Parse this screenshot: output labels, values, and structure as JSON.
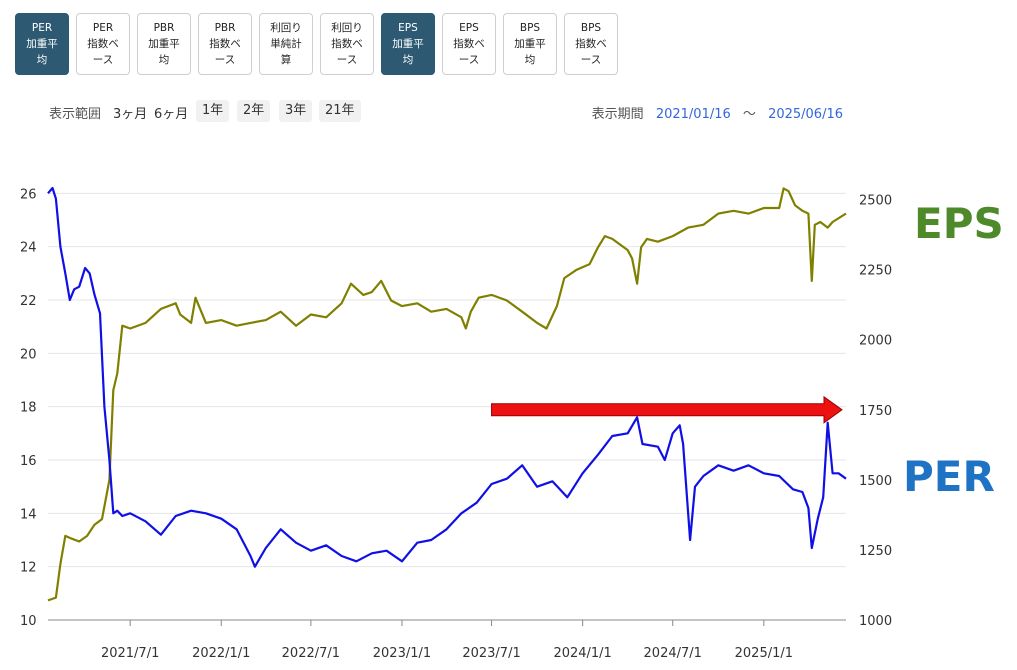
{
  "tabs": [
    {
      "label": "PER\n加重平\n均",
      "active": true
    },
    {
      "label": "PER\n指数ベ\nース",
      "active": false
    },
    {
      "label": "PBR\n加重平\n均",
      "active": false
    },
    {
      "label": "PBR\n指数ベ\nース",
      "active": false
    },
    {
      "label": "利回り\n単純計\n算",
      "active": false
    },
    {
      "label": "利回り\n指数ベ\nース",
      "active": false
    },
    {
      "label": "EPS\n加重平\n均",
      "active": true
    },
    {
      "label": "EPS\n指数ベ\nース",
      "active": false
    },
    {
      "label": "BPS\n加重平\n均",
      "active": false
    },
    {
      "label": "BPS\n指数ベ\nース",
      "active": false
    }
  ],
  "range": {
    "label": "表示範囲",
    "options": [
      "3ヶ月",
      "6ヶ月"
    ],
    "buttons": [
      "1年",
      "2年",
      "3年",
      "21年"
    ]
  },
  "period": {
    "label": "表示期間",
    "start": "2021/01/16",
    "sep": "〜",
    "end": "2025/06/16"
  },
  "colors": {
    "per_line": "#1010e6",
    "eps_line": "#808000",
    "per_label": "#1f73c4",
    "eps_label": "#4f8a2a",
    "arrow": "#ee1111",
    "active_tab": "#2d5a72"
  },
  "chart_data": {
    "type": "line",
    "x_ticks": [
      "2021/7/1",
      "2022/1/1",
      "2022/7/1",
      "2023/1/1",
      "2023/7/1",
      "2024/1/1",
      "2024/7/1",
      "2025/1/1"
    ],
    "y_left_ticks": [
      "10",
      "12",
      "14",
      "16",
      "18",
      "20",
      "22",
      "24",
      "26"
    ],
    "y_right_ticks": [
      "1000",
      "1250",
      "1500",
      "1750",
      "2000",
      "2250",
      "2500"
    ],
    "y_left_range": [
      10,
      26.5
    ],
    "y_right_range": [
      1000,
      2570
    ],
    "x_range": [
      "2021-01-16",
      "2025-06-16"
    ],
    "series": [
      {
        "name": "EPS",
        "axis": "right",
        "points": [
          [
            "2021-01-16",
            1070
          ],
          [
            "2021-02-01",
            1080
          ],
          [
            "2021-02-10",
            1200
          ],
          [
            "2021-02-20",
            1300
          ],
          [
            "2021-03-05",
            1290
          ],
          [
            "2021-03-20",
            1280
          ],
          [
            "2021-04-05",
            1300
          ],
          [
            "2021-04-20",
            1340
          ],
          [
            "2021-05-05",
            1360
          ],
          [
            "2021-05-20",
            1500
          ],
          [
            "2021-05-28",
            1820
          ],
          [
            "2021-06-05",
            1880
          ],
          [
            "2021-06-15",
            2050
          ],
          [
            "2021-07-01",
            2040
          ],
          [
            "2021-08-01",
            2060
          ],
          [
            "2021-09-01",
            2110
          ],
          [
            "2021-10-01",
            2130
          ],
          [
            "2021-10-10",
            2090
          ],
          [
            "2021-11-01",
            2060
          ],
          [
            "2021-11-10",
            2150
          ],
          [
            "2021-12-01",
            2060
          ],
          [
            "2022-01-01",
            2070
          ],
          [
            "2022-02-01",
            2050
          ],
          [
            "2022-03-01",
            2060
          ],
          [
            "2022-04-01",
            2070
          ],
          [
            "2022-05-01",
            2100
          ],
          [
            "2022-06-01",
            2050
          ],
          [
            "2022-07-01",
            2090
          ],
          [
            "2022-08-01",
            2080
          ],
          [
            "2022-09-01",
            2130
          ],
          [
            "2022-09-20",
            2200
          ],
          [
            "2022-10-15",
            2160
          ],
          [
            "2022-11-01",
            2170
          ],
          [
            "2022-11-20",
            2210
          ],
          [
            "2022-12-10",
            2140
          ],
          [
            "2023-01-01",
            2120
          ],
          [
            "2023-02-01",
            2130
          ],
          [
            "2023-03-01",
            2100
          ],
          [
            "2023-04-01",
            2110
          ],
          [
            "2023-05-01",
            2080
          ],
          [
            "2023-05-10",
            2040
          ],
          [
            "2023-05-20",
            2100
          ],
          [
            "2023-06-05",
            2150
          ],
          [
            "2023-07-01",
            2160
          ],
          [
            "2023-08-01",
            2140
          ],
          [
            "2023-09-01",
            2100
          ],
          [
            "2023-10-01",
            2060
          ],
          [
            "2023-10-20",
            2040
          ],
          [
            "2023-11-10",
            2120
          ],
          [
            "2023-11-25",
            2220
          ],
          [
            "2023-12-20",
            2250
          ],
          [
            "2024-01-15",
            2270
          ],
          [
            "2024-02-01",
            2330
          ],
          [
            "2024-02-15",
            2370
          ],
          [
            "2024-03-01",
            2360
          ],
          [
            "2024-04-01",
            2320
          ],
          [
            "2024-04-10",
            2290
          ],
          [
            "2024-04-20",
            2200
          ],
          [
            "2024-04-28",
            2330
          ],
          [
            "2024-05-10",
            2360
          ],
          [
            "2024-06-01",
            2350
          ],
          [
            "2024-07-01",
            2370
          ],
          [
            "2024-08-01",
            2400
          ],
          [
            "2024-09-01",
            2410
          ],
          [
            "2024-10-01",
            2450
          ],
          [
            "2024-11-01",
            2460
          ],
          [
            "2024-12-01",
            2450
          ],
          [
            "2025-01-01",
            2470
          ],
          [
            "2025-02-01",
            2470
          ],
          [
            "2025-02-10",
            2540
          ],
          [
            "2025-02-20",
            2530
          ],
          [
            "2025-03-05",
            2480
          ],
          [
            "2025-03-20",
            2460
          ],
          [
            "2025-04-01",
            2450
          ],
          [
            "2025-04-08",
            2210
          ],
          [
            "2025-04-14",
            2410
          ],
          [
            "2025-04-25",
            2420
          ],
          [
            "2025-05-10",
            2400
          ],
          [
            "2025-05-20",
            2420
          ],
          [
            "2025-06-16",
            2450
          ]
        ]
      },
      {
        "name": "PER",
        "axis": "left",
        "points": [
          [
            "2021-01-16",
            26
          ],
          [
            "2021-01-25",
            26.2
          ],
          [
            "2021-02-01",
            25.8
          ],
          [
            "2021-02-10",
            24
          ],
          [
            "2021-02-20",
            23
          ],
          [
            "2021-03-01",
            22
          ],
          [
            "2021-03-10",
            22.4
          ],
          [
            "2021-03-20",
            22.5
          ],
          [
            "2021-04-01",
            23.2
          ],
          [
            "2021-04-10",
            23
          ],
          [
            "2021-04-20",
            22.2
          ],
          [
            "2021-05-01",
            21.5
          ],
          [
            "2021-05-10",
            18
          ],
          [
            "2021-05-20",
            16
          ],
          [
            "2021-05-28",
            14
          ],
          [
            "2021-06-05",
            14.1
          ],
          [
            "2021-06-15",
            13.9
          ],
          [
            "2021-07-01",
            14
          ],
          [
            "2021-08-01",
            13.7
          ],
          [
            "2021-09-01",
            13.2
          ],
          [
            "2021-10-01",
            13.9
          ],
          [
            "2021-11-01",
            14.1
          ],
          [
            "2021-12-01",
            14
          ],
          [
            "2022-01-01",
            13.8
          ],
          [
            "2022-02-01",
            13.4
          ],
          [
            "2022-03-01",
            12.4
          ],
          [
            "2022-03-10",
            12
          ],
          [
            "2022-04-01",
            12.7
          ],
          [
            "2022-05-01",
            13.4
          ],
          [
            "2022-06-01",
            12.9
          ],
          [
            "2022-07-01",
            12.6
          ],
          [
            "2022-08-01",
            12.8
          ],
          [
            "2022-09-01",
            12.4
          ],
          [
            "2022-10-01",
            12.2
          ],
          [
            "2022-11-01",
            12.5
          ],
          [
            "2022-12-01",
            12.6
          ],
          [
            "2023-01-01",
            12.2
          ],
          [
            "2023-02-01",
            12.9
          ],
          [
            "2023-03-01",
            13
          ],
          [
            "2023-04-01",
            13.4
          ],
          [
            "2023-05-01",
            14
          ],
          [
            "2023-06-01",
            14.4
          ],
          [
            "2023-07-01",
            15.1
          ],
          [
            "2023-08-01",
            15.3
          ],
          [
            "2023-09-01",
            15.8
          ],
          [
            "2023-10-01",
            15
          ],
          [
            "2023-11-01",
            15.2
          ],
          [
            "2023-12-01",
            14.6
          ],
          [
            "2024-01-01",
            15.5
          ],
          [
            "2024-02-01",
            16.2
          ],
          [
            "2024-03-01",
            16.9
          ],
          [
            "2024-04-01",
            17
          ],
          [
            "2024-04-20",
            17.6
          ],
          [
            "2024-05-01",
            16.6
          ],
          [
            "2024-06-01",
            16.5
          ],
          [
            "2024-06-15",
            16
          ],
          [
            "2024-07-01",
            17
          ],
          [
            "2024-07-15",
            17.3
          ],
          [
            "2024-07-22",
            16.6
          ],
          [
            "2024-08-05",
            13
          ],
          [
            "2024-08-15",
            15
          ],
          [
            "2024-09-01",
            15.4
          ],
          [
            "2024-10-01",
            15.8
          ],
          [
            "2024-11-01",
            15.6
          ],
          [
            "2024-12-01",
            15.8
          ],
          [
            "2025-01-01",
            15.5
          ],
          [
            "2025-02-01",
            15.4
          ],
          [
            "2025-03-01",
            14.9
          ],
          [
            "2025-03-20",
            14.8
          ],
          [
            "2025-04-01",
            14.2
          ],
          [
            "2025-04-08",
            12.7
          ],
          [
            "2025-04-20",
            13.8
          ],
          [
            "2025-05-01",
            14.6
          ],
          [
            "2025-05-10",
            17.4
          ],
          [
            "2025-05-20",
            15.5
          ],
          [
            "2025-06-01",
            15.5
          ],
          [
            "2025-06-16",
            15.3
          ]
        ]
      }
    ],
    "annotations": [
      {
        "text": "EPS",
        "near": "right-top"
      },
      {
        "text": "PER",
        "near": "right-middle"
      }
    ],
    "arrow": {
      "from": "2023-07-01",
      "to": "2025-06-16",
      "level_right_axis": 1750
    },
    "grid": true
  }
}
